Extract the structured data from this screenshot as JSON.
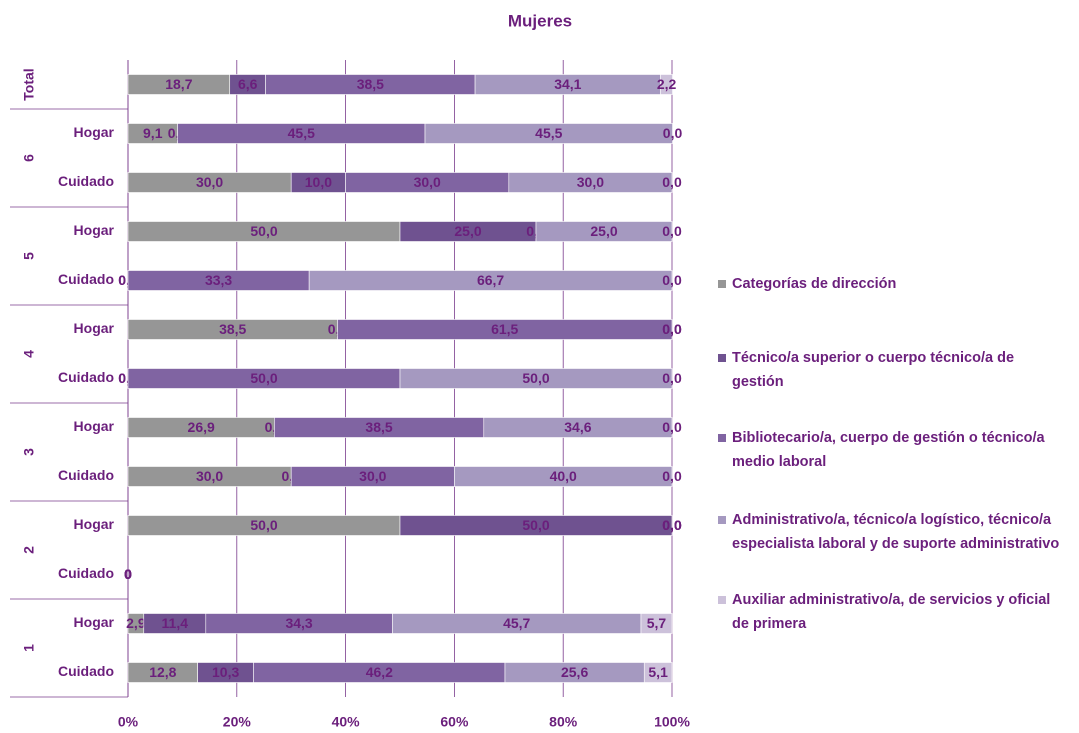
{
  "chart_data": {
    "type": "stacked-bar-horizontal",
    "title": "Mujeres",
    "groups": [
      {
        "label": "Total",
        "categories": [
          null
        ]
      },
      {
        "label": "6",
        "categories": [
          "Hogar",
          "Cuidado"
        ]
      },
      {
        "label": "5",
        "categories": [
          "Hogar",
          "Cuidado"
        ]
      },
      {
        "label": "4",
        "categories": [
          "Hogar",
          "Cuidado"
        ]
      },
      {
        "label": "3",
        "categories": [
          "Hogar",
          "Cuidado"
        ]
      },
      {
        "label": "2",
        "categories": [
          "Hogar",
          "Cuidado"
        ]
      },
      {
        "label": "1",
        "categories": [
          "Hogar",
          "Cuidado"
        ]
      }
    ],
    "series": [
      {
        "name": "Categorías de dirección",
        "color": "#969696",
        "values": [
          18.7,
          9.1,
          30.0,
          50.0,
          0.0,
          38.5,
          0.0,
          26.9,
          30.0,
          50.0,
          0,
          2.9,
          12.8
        ],
        "value_labels": [
          "18,7",
          "9,1",
          "30,0",
          "50,0",
          "0,0",
          "38,5",
          "0,0",
          "26,9",
          "30,0",
          "50,0",
          "0",
          "2,9",
          "12,8"
        ]
      },
      {
        "name": "Técnico/a superior o cuerpo técnico/a de gestión",
        "color": "#6f5290",
        "values": [
          6.6,
          0.0,
          10.0,
          25.0,
          0.0,
          0.0,
          0.0,
          0.0,
          0.0,
          50.0,
          0,
          11.4,
          10.3
        ],
        "value_labels": [
          "6,6",
          "0,0",
          "10,0",
          "25,0",
          "0,0",
          "0,0",
          "0,0",
          "0,0",
          "0,0",
          "50,0",
          "0",
          "11,4",
          "10,3"
        ]
      },
      {
        "name": "Bibliotecario/a, cuerpo de gestión o técnico/a medio laboral",
        "color": "#8064a2",
        "values": [
          38.5,
          45.5,
          30.0,
          0.0,
          33.3,
          61.5,
          50.0,
          38.5,
          30.0,
          0.0,
          0,
          34.3,
          46.2
        ],
        "value_labels": [
          "38,5",
          "45,5",
          "30,0",
          "0,0",
          "33,3",
          "61,5",
          "50,0",
          "38,5",
          "30,0",
          "0,0",
          "0",
          "34,3",
          "46,2"
        ]
      },
      {
        "name": "Administrativo/a, técnico/a logístico, técnico/a especialista laboral y de suporte administrativo",
        "color": "#a599c0",
        "values": [
          34.1,
          45.5,
          30.0,
          25.0,
          66.7,
          0.0,
          50.0,
          34.6,
          40.0,
          0.0,
          0,
          45.7,
          25.6
        ],
        "value_labels": [
          "34,1",
          "45,5",
          "30,0",
          "25,0",
          "66,7",
          "0,0",
          "50,0",
          "34,6",
          "40,0",
          "0,0",
          "0",
          "45,7",
          "25,6"
        ]
      },
      {
        "name": "Auxiliar administrativo/a, de servicios y oficial de primera",
        "color": "#ccc1da",
        "values": [
          2.2,
          0.0,
          0.0,
          0.0,
          0.0,
          0.0,
          0.0,
          0.0,
          0.0,
          0.0,
          0,
          5.7,
          5.1
        ],
        "value_labels": [
          "2,2",
          "0,0",
          "0,0",
          "0,0",
          "0,0",
          "0,0",
          "0,0",
          "0,0",
          "0,0",
          "0,0",
          "0",
          "5,7",
          "5,1"
        ]
      }
    ],
    "xlim": [
      0,
      100
    ],
    "xticks": [
      {
        "value": 0,
        "label": "0%"
      },
      {
        "value": 20,
        "label": "20%"
      },
      {
        "value": 40,
        "label": "40%"
      },
      {
        "value": 60,
        "label": "60%"
      },
      {
        "value": 80,
        "label": "80%"
      },
      {
        "value": 100,
        "label": "100%"
      }
    ],
    "grid": true,
    "legend": "right"
  }
}
